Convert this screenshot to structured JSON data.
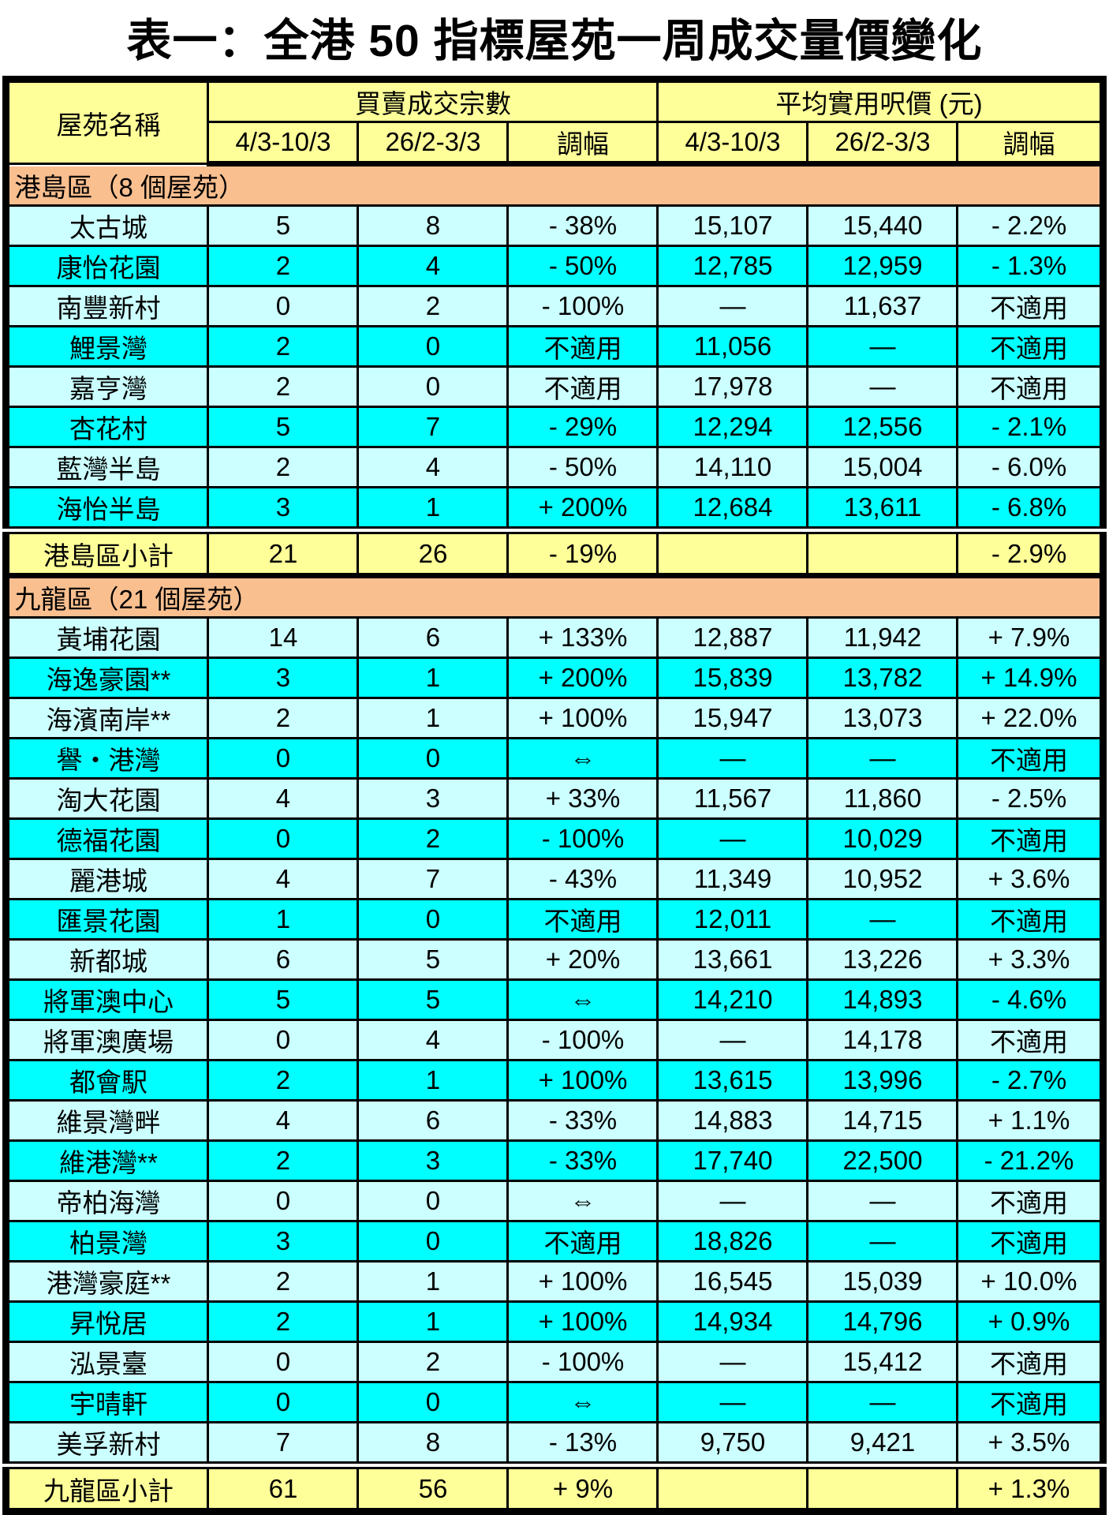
{
  "title": "表一：全港 50 指標屋苑一周成交量價變化",
  "table": {
    "columns": {
      "name_header": "屋苑名稱",
      "transactions_group": "買賣成交宗數",
      "price_group": "平均實用呎價 (元)",
      "period_current": "4/3-10/3",
      "period_previous": "26/2-3/3",
      "change_label": "調幅"
    },
    "colors": {
      "header_yellow": "#FFFF99",
      "section_peach": "#FABF8F",
      "row_light": "#CCFFFF",
      "row_aqua": "#00FFFF",
      "border": "#000000"
    },
    "sections": [
      {
        "header": "港島區（8 個屋苑）",
        "rows": [
          [
            "太古城",
            "5",
            "8",
            "- 38%",
            "15,107",
            "15,440",
            "- 2.2%"
          ],
          [
            "康怡花園",
            "2",
            "4",
            "- 50%",
            "12,785",
            "12,959",
            "- 1.3%"
          ],
          [
            "南豐新村",
            "0",
            "2",
            "- 100%",
            "—",
            "11,637",
            "不適用"
          ],
          [
            "鯉景灣",
            "2",
            "0",
            "不適用",
            "11,056",
            "—",
            "不適用"
          ],
          [
            "嘉亨灣",
            "2",
            "0",
            "不適用",
            "17,978",
            "—",
            "不適用"
          ],
          [
            "杏花村",
            "5",
            "7",
            "- 29%",
            "12,294",
            "12,556",
            "- 2.1%"
          ],
          [
            "藍灣半島",
            "2",
            "4",
            "- 50%",
            "14,110",
            "15,004",
            "- 6.0%"
          ],
          [
            "海怡半島",
            "3",
            "1",
            "+ 200%",
            "12,684",
            "13,611",
            "- 6.8%"
          ]
        ],
        "subtotal": [
          "港島區小計",
          "21",
          "26",
          "- 19%",
          "",
          "",
          "- 2.9%"
        ]
      },
      {
        "header": "九龍區（21 個屋苑）",
        "rows": [
          [
            "黃埔花園",
            "14",
            "6",
            "+ 133%",
            "12,887",
            "11,942",
            "+ 7.9%"
          ],
          [
            "海逸豪園**",
            "3",
            "1",
            "+ 200%",
            "15,839",
            "13,782",
            "+ 14.9%"
          ],
          [
            "海濱南岸**",
            "2",
            "1",
            "+ 100%",
            "15,947",
            "13,073",
            "+ 22.0%"
          ],
          [
            "譽・港灣",
            "0",
            "0",
            "⇔",
            "—",
            "—",
            "不適用"
          ],
          [
            "淘大花園",
            "4",
            "3",
            "+ 33%",
            "11,567",
            "11,860",
            "- 2.5%"
          ],
          [
            "德福花園",
            "0",
            "2",
            "- 100%",
            "—",
            "10,029",
            "不適用"
          ],
          [
            "麗港城",
            "4",
            "7",
            "- 43%",
            "11,349",
            "10,952",
            "+ 3.6%"
          ],
          [
            "匯景花園",
            "1",
            "0",
            "不適用",
            "12,011",
            "—",
            "不適用"
          ],
          [
            "新都城",
            "6",
            "5",
            "+ 20%",
            "13,661",
            "13,226",
            "+ 3.3%"
          ],
          [
            "將軍澳中心",
            "5",
            "5",
            "⇔",
            "14,210",
            "14,893",
            "- 4.6%"
          ],
          [
            "將軍澳廣場",
            "0",
            "4",
            "- 100%",
            "—",
            "14,178",
            "不適用"
          ],
          [
            "都會駅",
            "2",
            "1",
            "+ 100%",
            "13,615",
            "13,996",
            "- 2.7%"
          ],
          [
            "維景灣畔",
            "4",
            "6",
            "- 33%",
            "14,883",
            "14,715",
            "+ 1.1%"
          ],
          [
            "維港灣**",
            "2",
            "3",
            "- 33%",
            "17,740",
            "22,500",
            "- 21.2%"
          ],
          [
            "帝柏海灣",
            "0",
            "0",
            "⇔",
            "—",
            "—",
            "不適用"
          ],
          [
            "柏景灣",
            "3",
            "0",
            "不適用",
            "18,826",
            "—",
            "不適用"
          ],
          [
            "港灣豪庭**",
            "2",
            "1",
            "+ 100%",
            "16,545",
            "15,039",
            "+ 10.0%"
          ],
          [
            "昇悅居",
            "2",
            "1",
            "+ 100%",
            "14,934",
            "14,796",
            "+ 0.9%"
          ],
          [
            "泓景臺",
            "0",
            "2",
            "- 100%",
            "—",
            "15,412",
            "不適用"
          ],
          [
            "宇晴軒",
            "0",
            "0",
            "⇔",
            "—",
            "—",
            "不適用"
          ],
          [
            "美孚新村",
            "7",
            "8",
            "- 13%",
            "9,750",
            "9,421",
            "+ 3.5%"
          ]
        ],
        "subtotal": [
          "九龍區小計",
          "61",
          "56",
          "+ 9%",
          "",
          "",
          "+ 1.3%"
        ]
      }
    ]
  }
}
